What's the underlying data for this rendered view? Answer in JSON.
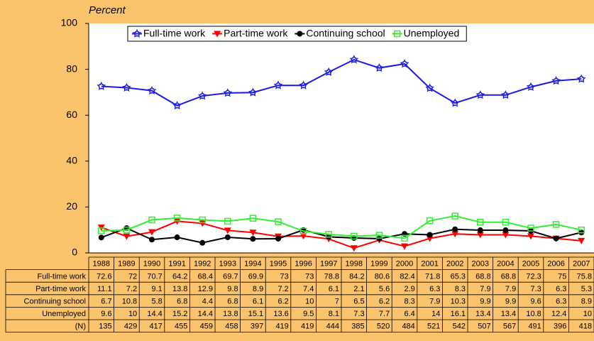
{
  "chart_data": {
    "type": "line",
    "ylabel": "Percent",
    "categories": [
      "1988",
      "1989",
      "1990",
      "1991",
      "1992",
      "1993",
      "1994",
      "1995",
      "1996",
      "1997",
      "1998",
      "1999",
      "2000",
      "2001",
      "2002",
      "2003",
      "2004",
      "2005",
      "2006",
      "2007"
    ],
    "series": [
      {
        "name": "Full-time work",
        "color": "#1a1ae6",
        "marker": "star",
        "values": [
          72.6,
          72,
          70.7,
          64.2,
          68.4,
          69.7,
          69.9,
          73,
          73,
          78.8,
          84.2,
          80.6,
          82.4,
          71.8,
          65.3,
          68.8,
          68.8,
          72.3,
          75,
          75.8
        ]
      },
      {
        "name": "Part-time work",
        "color": "#ff0000",
        "marker": "triangle-down",
        "values": [
          11.1,
          7.2,
          9.1,
          13.8,
          12.9,
          9.8,
          8.9,
          7.2,
          7.4,
          6.1,
          2.1,
          5.6,
          2.9,
          6.3,
          8.3,
          7.9,
          7.9,
          7.3,
          6.3,
          5.3
        ]
      },
      {
        "name": "Continuing school",
        "color": "#000000",
        "marker": "circle",
        "values": [
          6.7,
          10.8,
          5.8,
          6.8,
          4.4,
          6.8,
          6.1,
          6.2,
          10,
          7,
          6.5,
          6.2,
          8.3,
          7.9,
          10.3,
          9.9,
          9.9,
          9.6,
          6.3,
          8.9
        ]
      },
      {
        "name": "Unemployed",
        "color": "#33ee33",
        "marker": "square",
        "values": [
          9.6,
          10,
          14.4,
          15.2,
          14.4,
          13.8,
          15.1,
          13.6,
          9.5,
          8.1,
          7.3,
          7.7,
          6.4,
          14,
          16.1,
          13.4,
          13.4,
          10.8,
          12.4,
          10
        ]
      }
    ],
    "n": {
      "name": "(N)",
      "values": [
        135,
        429,
        417,
        455,
        459,
        458,
        397,
        419,
        419,
        444,
        385,
        520,
        484,
        521,
        542,
        507,
        567,
        491,
        396,
        418
      ]
    },
    "ylim": [
      0,
      100
    ],
    "yticks": [
      0,
      20,
      40,
      60,
      80,
      100
    ],
    "grid": false,
    "legend": "top"
  }
}
